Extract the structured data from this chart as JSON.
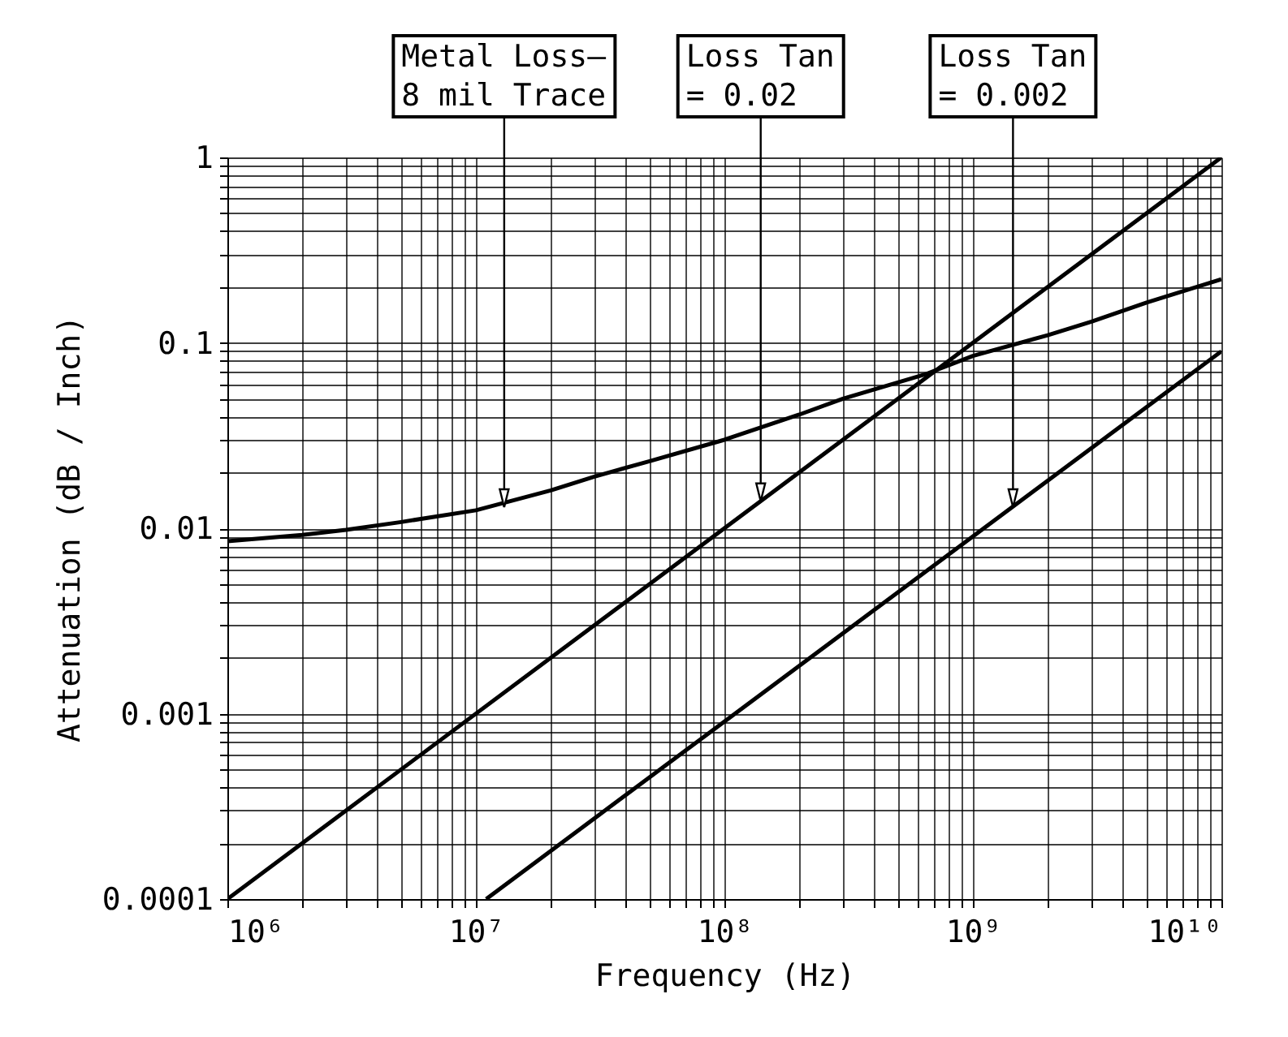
{
  "chart_data": {
    "type": "line",
    "xlabel": "Frequency (Hz)",
    "ylabel": "Attenuation (dB / Inch)",
    "log": "xy",
    "grid": true,
    "legend": false,
    "xlim": [
      1000000,
      10000000000
    ],
    "ylim": [
      0.0001,
      1
    ],
    "xticks": [
      {
        "value": 1000000,
        "label": "10⁶"
      },
      {
        "value": 2000000,
        "label": null
      },
      {
        "value": 3000000,
        "label": null
      },
      {
        "value": 4000000,
        "label": null
      },
      {
        "value": 5000000,
        "label": null
      },
      {
        "value": 6000000,
        "label": null
      },
      {
        "value": 7000000,
        "label": null
      },
      {
        "value": 8000000,
        "label": null
      },
      {
        "value": 9000000,
        "label": null
      },
      {
        "value": 10000000,
        "label": "10⁷"
      },
      {
        "value": 20000000,
        "label": null
      },
      {
        "value": 30000000,
        "label": null
      },
      {
        "value": 40000000,
        "label": null
      },
      {
        "value": 50000000,
        "label": null
      },
      {
        "value": 60000000,
        "label": null
      },
      {
        "value": 70000000,
        "label": null
      },
      {
        "value": 80000000,
        "label": null
      },
      {
        "value": 90000000,
        "label": null
      },
      {
        "value": 100000000,
        "label": "10⁸"
      },
      {
        "value": 200000000,
        "label": null
      },
      {
        "value": 300000000,
        "label": null
      },
      {
        "value": 400000000,
        "label": null
      },
      {
        "value": 500000000,
        "label": null
      },
      {
        "value": 600000000,
        "label": null
      },
      {
        "value": 700000000,
        "label": null
      },
      {
        "value": 800000000,
        "label": null
      },
      {
        "value": 900000000,
        "label": null
      },
      {
        "value": 1000000000,
        "label": "10⁹"
      },
      {
        "value": 2000000000,
        "label": null
      },
      {
        "value": 3000000000,
        "label": null
      },
      {
        "value": 4000000000,
        "label": null
      },
      {
        "value": 5000000000,
        "label": null
      },
      {
        "value": 6000000000,
        "label": null
      },
      {
        "value": 7000000000,
        "label": null
      },
      {
        "value": 8000000000,
        "label": null
      },
      {
        "value": 9000000000,
        "label": null
      },
      {
        "value": 10000000000,
        "label": "10¹⁰"
      }
    ],
    "yticks": [
      0.0001,
      {
        "value": 0.0002,
        "label": null
      },
      {
        "value": 0.0003,
        "label": null
      },
      {
        "value": 0.0004,
        "label": null
      },
      {
        "value": 0.0005,
        "label": null
      },
      {
        "value": 0.0006,
        "label": null
      },
      {
        "value": 0.0007,
        "label": null
      },
      {
        "value": 0.0008,
        "label": null
      },
      {
        "value": 0.0009,
        "label": null
      },
      0.001,
      {
        "value": 0.002,
        "label": null
      },
      {
        "value": 0.003,
        "label": null
      },
      {
        "value": 0.004,
        "label": null
      },
      {
        "value": 0.005,
        "label": null
      },
      {
        "value": 0.006,
        "label": null
      },
      {
        "value": 0.007,
        "label": null
      },
      {
        "value": 0.008,
        "label": null
      },
      {
        "value": 0.009,
        "label": null
      },
      0.01,
      {
        "value": 0.02,
        "label": null
      },
      {
        "value": 0.03,
        "label": null
      },
      {
        "value": 0.04,
        "label": null
      },
      {
        "value": 0.05,
        "label": null
      },
      {
        "value": 0.06,
        "label": null
      },
      {
        "value": 0.07,
        "label": null
      },
      {
        "value": 0.08,
        "label": null
      },
      {
        "value": 0.09,
        "label": null
      },
      0.1,
      {
        "value": 0.2,
        "label": null
      },
      {
        "value": 0.3,
        "label": null
      },
      {
        "value": 0.4,
        "label": null
      },
      {
        "value": 0.5,
        "label": null
      },
      {
        "value": 0.6,
        "label": null
      },
      {
        "value": 0.7,
        "label": null
      },
      {
        "value": 0.8,
        "label": null
      },
      {
        "value": 0.9,
        "label": null
      },
      1
    ],
    "series": [
      {
        "color": "#000000",
        "x": [
          1000000,
          2000000,
          3000000,
          5000000,
          10000000,
          20000000,
          30000000,
          50000000,
          100000000,
          200000000,
          300000000,
          650000000,
          1000000000,
          2000000000,
          3000000000,
          5000000000,
          10000000000
        ],
        "values": [
          0.0085,
          0.0092,
          0.0098,
          0.0108,
          0.0125,
          0.016,
          0.019,
          0.023,
          0.03,
          0.041,
          0.05,
          0.068,
          0.085,
          0.11,
          0.13,
          0.165,
          0.22
        ]
      },
      {
        "color": "#000000",
        "x": [
          1000000,
          10000000000
        ],
        "values": [
          0.0001,
          1
        ]
      },
      {
        "color": "#000000",
        "x": [
          11000000,
          10000000000
        ],
        "values": [
          0.0001,
          0.09
        ]
      }
    ],
    "annotations": [
      {
        "text": "Metal Loss–\n8 mil Trace",
        "x": 13000000,
        "y": 0.013
      },
      {
        "text": "Loss Tan\n= 0.02",
        "x": 140000000,
        "y": 0.014
      },
      {
        "text": "Loss Tan\n= 0.002",
        "x": 1450000000,
        "y": 0.013
      }
    ]
  }
}
